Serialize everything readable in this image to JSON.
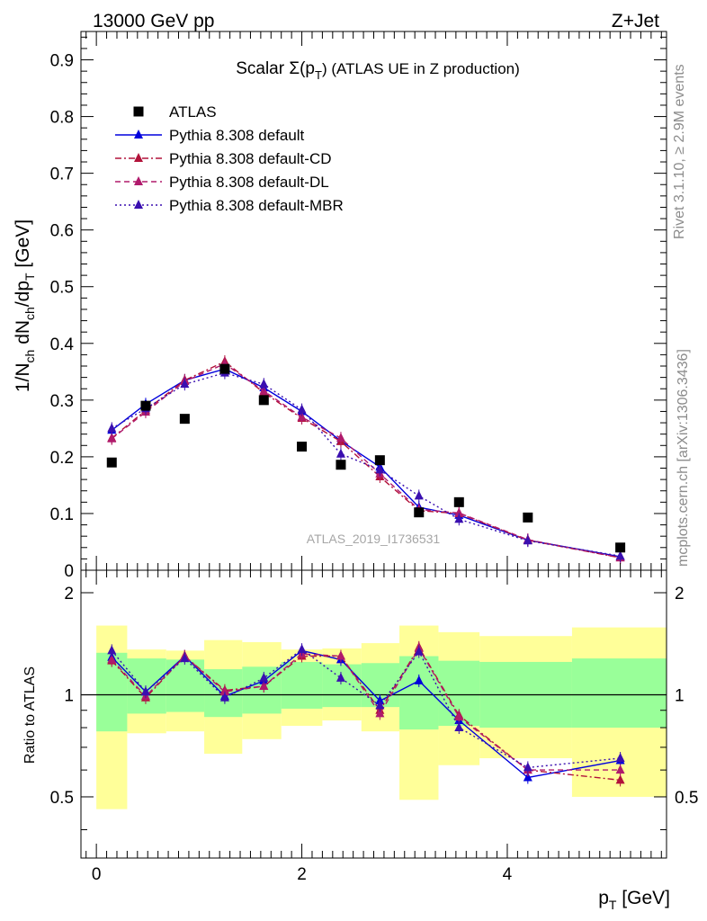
{
  "header": {
    "left": "13000 GeV pp",
    "right": "Z+Jet"
  },
  "side_text": {
    "rivet": "Rivet 3.1.10, ≥ 2.9M events",
    "mcplots": "mcplots.cern.ch [arXiv:1306.3436]"
  },
  "chart_data": [
    {
      "type": "scatter",
      "title_parts": [
        "Scalar Σ(p",
        "T",
        ") (ATLAS UE in Z production)"
      ],
      "ylabel_parts": [
        "1/N",
        "ch",
        " dN",
        "ch",
        "/dp",
        "T",
        " [GeV]"
      ],
      "watermark": "ATLAS_2019_I1736531",
      "xlim": [
        -0.15,
        5.55
      ],
      "ylim": [
        0,
        0.95
      ],
      "yticks": [
        0,
        0.1,
        0.2,
        0.3,
        0.4,
        0.5,
        0.6,
        0.7,
        0.8,
        0.9
      ],
      "ytick_labels": [
        "0",
        "0.1",
        "0.2",
        "0.3",
        "0.4",
        "0.5",
        "0.6",
        "0.7",
        "0.8",
        "0.9"
      ],
      "x": [
        0.15,
        0.48,
        0.86,
        1.25,
        1.63,
        2.0,
        2.38,
        2.76,
        3.14,
        3.53,
        4.2,
        5.1
      ],
      "series": [
        {
          "name": "ATLAS",
          "style": "data",
          "color": "#000000",
          "values": [
            0.19,
            0.29,
            0.267,
            0.355,
            0.3,
            0.218,
            0.186,
            0.194,
            0.102,
            0.12,
            0.093,
            0.04
          ]
        },
        {
          "name": "Pythia 8.308 default",
          "style": "solid",
          "color": "#0000dd",
          "values": [
            0.247,
            0.293,
            0.335,
            0.355,
            0.322,
            0.28,
            0.228,
            0.182,
            0.111,
            0.097,
            0.053,
            0.024
          ]
        },
        {
          "name": "Pythia 8.308 default-CD",
          "style": "dashdot",
          "color": "#b2123a",
          "values": [
            0.233,
            0.282,
            0.335,
            0.368,
            0.313,
            0.268,
            0.227,
            0.165,
            0.105,
            0.1,
            0.053,
            0.022
          ]
        },
        {
          "name": "Pythia 8.308 default-DL",
          "style": "dashed",
          "color": "#b01a6c",
          "values": [
            0.232,
            0.279,
            0.333,
            0.364,
            0.316,
            0.27,
            0.233,
            0.17,
            0.107,
            0.101,
            0.054,
            0.022
          ]
        },
        {
          "name": "Pythia 8.308 default-MBR",
          "style": "dotted",
          "color": "#3a0fb0",
          "values": [
            0.25,
            0.285,
            0.328,
            0.348,
            0.328,
            0.283,
            0.205,
            0.177,
            0.131,
            0.09,
            0.052,
            0.025
          ]
        }
      ]
    },
    {
      "type": "line",
      "ylabel": "Ratio to ATLAS",
      "xlabel_parts": [
        "p",
        "T",
        " [GeV]"
      ],
      "xlim": [
        -0.15,
        5.55
      ],
      "ylim": [
        0.33,
        2.33
      ],
      "xticks": [
        0,
        2,
        4
      ],
      "xtick_labels": [
        "0",
        "2",
        "4"
      ],
      "yticks": [
        0.5,
        1,
        2
      ],
      "ytick_labels": [
        "0.5",
        "1",
        "2"
      ],
      "band_edges": [
        0.0,
        0.3,
        0.68,
        1.05,
        1.42,
        1.8,
        2.2,
        2.58,
        2.95,
        3.33,
        3.73,
        4.63,
        5.55
      ],
      "band_inner": [
        [
          0.78,
          1.33
        ],
        [
          0.88,
          1.28
        ],
        [
          0.89,
          1.27
        ],
        [
          0.86,
          1.19
        ],
        [
          0.88,
          1.21
        ],
        [
          0.91,
          1.25
        ],
        [
          0.92,
          1.23
        ],
        [
          0.92,
          1.24
        ],
        [
          0.79,
          1.3
        ],
        [
          0.81,
          1.26
        ],
        [
          0.8,
          1.25
        ],
        [
          0.8,
          1.28
        ]
      ],
      "band_outer": [
        [
          0.46,
          1.6
        ],
        [
          0.77,
          1.36
        ],
        [
          0.78,
          1.35
        ],
        [
          0.67,
          1.45
        ],
        [
          0.74,
          1.43
        ],
        [
          0.81,
          1.36
        ],
        [
          0.84,
          1.37
        ],
        [
          0.78,
          1.42
        ],
        [
          0.49,
          1.6
        ],
        [
          0.62,
          1.53
        ],
        [
          0.65,
          1.49
        ],
        [
          0.5,
          1.58
        ]
      ],
      "x": [
        0.15,
        0.48,
        0.86,
        1.25,
        1.63,
        2.0,
        2.38,
        2.76,
        3.14,
        3.53,
        4.2,
        5.1
      ],
      "reference": 1,
      "series": [
        {
          "name": "Pythia 8.308 default",
          "style": "solid",
          "color": "#0000dd",
          "values": [
            1.29,
            1.02,
            1.3,
            0.99,
            1.1,
            1.35,
            1.27,
            0.96,
            1.1,
            0.84,
            0.57,
            0.64
          ]
        },
        {
          "name": "Pythia 8.308 default-CD",
          "style": "dashdot",
          "color": "#b2123a",
          "values": [
            1.26,
            0.98,
            1.3,
            1.03,
            1.06,
            1.3,
            1.3,
            0.9,
            1.38,
            0.87,
            0.6,
            0.56
          ]
        },
        {
          "name": "Pythia 8.308 default-DL",
          "style": "dashed",
          "color": "#b01a6c",
          "values": [
            1.27,
            0.99,
            1.3,
            1.02,
            1.06,
            1.32,
            1.3,
            0.88,
            1.37,
            0.86,
            0.6,
            0.6
          ]
        },
        {
          "name": "Pythia 8.308 default-MBR",
          "style": "dotted",
          "color": "#3a0fb0",
          "values": [
            1.35,
            1.02,
            1.28,
            0.98,
            1.12,
            1.36,
            1.12,
            0.93,
            1.34,
            0.8,
            0.61,
            0.65
          ]
        }
      ]
    }
  ]
}
